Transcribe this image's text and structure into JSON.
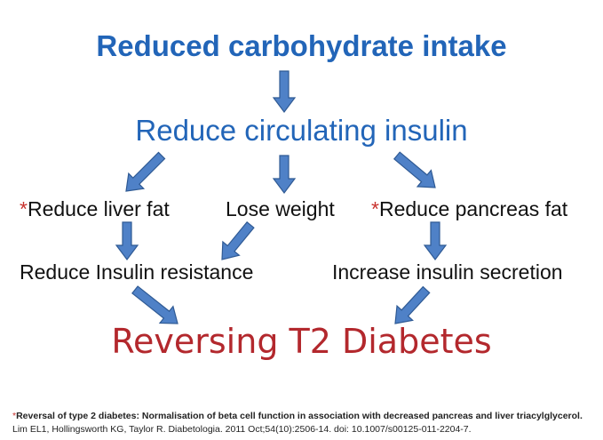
{
  "title": "Reduced carbohydrate intake",
  "level2": "Reduce circulating insulin",
  "effects": {
    "star": "*",
    "liver": "Reduce liver fat",
    "weight": "Lose weight",
    "pancreas": "Reduce pancreas fat"
  },
  "mechanisms": {
    "resistance": "Reduce Insulin resistance",
    "secretion": "Increase insulin secretion"
  },
  "result": "Reversing T2 Diabetes",
  "reference": {
    "star": "*",
    "title": "Reversal of type 2 diabetes: Normalisation of beta cell function in association with decreased pancreas and liver triacylglycerol.",
    "citation": "Lim EL1, Hollingsworth KG, Taylor R. Diabetologia. 2011 Oct;54(10):2506-14. doi: 10.1007/s00125-011-2204-7."
  },
  "colors": {
    "heading_blue": "#2265b8",
    "arrow_fill": "#4f81c7",
    "arrow_stroke": "#2f5a94",
    "result_red": "#b3282d",
    "star_red": "#c8322d"
  }
}
